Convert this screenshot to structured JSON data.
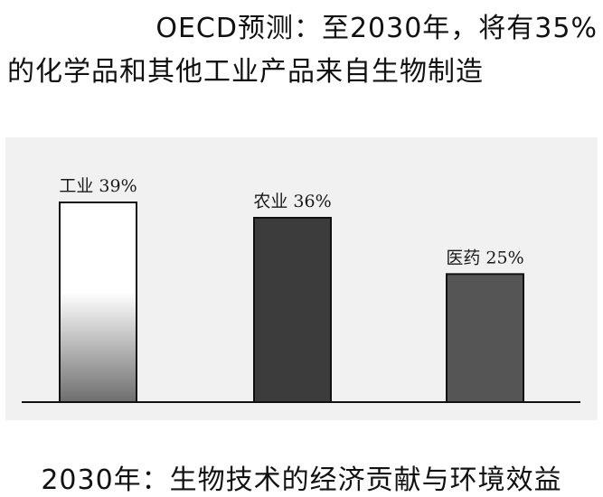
{
  "header": {
    "line1": "OECD预测：至2030年，将有35%",
    "line2": "的化学品和其他工业产品来自生物制造"
  },
  "caption": "2030年：生物技术的经济贡献与环境效益",
  "chart_data": {
    "type": "bar",
    "categories": [
      "工业",
      "农业",
      "医药"
    ],
    "values": [
      39,
      36,
      25
    ],
    "labels": [
      "工业 39%",
      "农业 36%",
      "医药 25%"
    ],
    "unit": "%",
    "ylim": [
      0,
      45
    ],
    "grid": false,
    "legend": "none",
    "colors": {
      "bar1_top": "#ffffff",
      "bar1_bottom": "#6e6e6e",
      "bar2": "#3c3c3c",
      "bar3": "#555555",
      "outline": "#111111",
      "panel": "#f1f1f1"
    }
  }
}
